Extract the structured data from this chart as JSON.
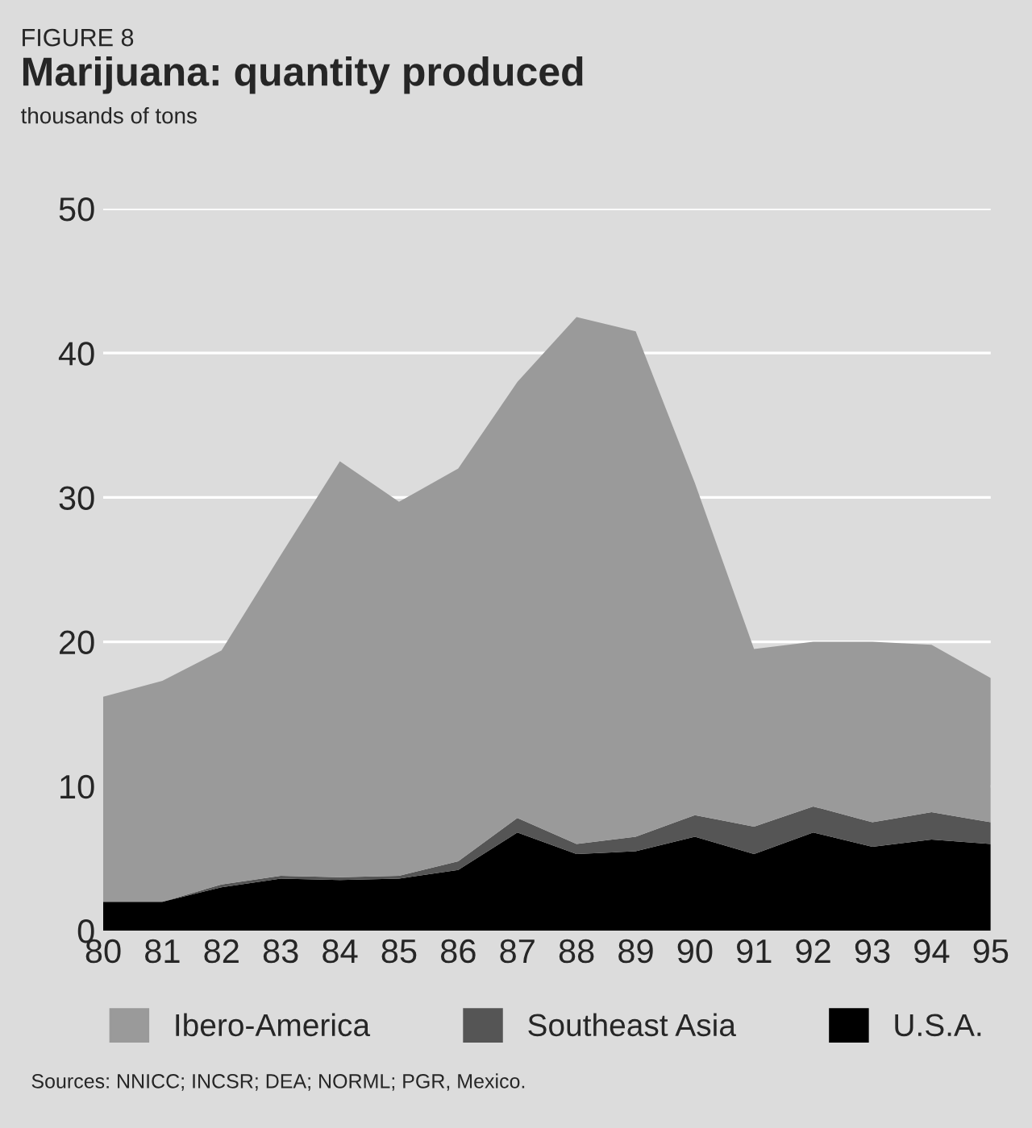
{
  "chart_data": {
    "type": "area",
    "title": "Marijuana: quantity produced",
    "ylabel": "thousands of tons",
    "annotations": [
      "FIGURE 8",
      "Sources: NNICC; INCSR; DEA; NORML; PGR, Mexico."
    ],
    "categories": [
      "80",
      "81",
      "82",
      "83",
      "84",
      "85",
      "86",
      "87",
      "88",
      "89",
      "90",
      "91",
      "92",
      "93",
      "94",
      "95"
    ],
    "stacked": true,
    "series": [
      {
        "name": "U.S.A.",
        "color": "#000000",
        "values": [
          2,
          2,
          3,
          3.6,
          3.5,
          3.6,
          4.2,
          6.8,
          5.3,
          5.5,
          6.5,
          5.3,
          6.8,
          5.8,
          6.3,
          6
        ]
      },
      {
        "name": "Southeast Asia",
        "color": "#555555",
        "values": [
          0,
          0,
          0.2,
          0.2,
          0.2,
          0.2,
          0.6,
          1,
          0.7,
          1,
          1.5,
          1.9,
          1.8,
          1.7,
          1.9,
          1.5
        ]
      },
      {
        "name": "Ibero-America",
        "color": "#9a9a9a",
        "values": [
          14.2,
          15.3,
          16.2,
          22.2,
          28.8,
          25.9,
          27.2,
          30.2,
          36.5,
          35,
          23,
          12.3,
          11.4,
          12.5,
          11.6,
          10
        ]
      }
    ],
    "ylim": [
      0,
      50
    ],
    "yticks": [
      0,
      10,
      20,
      30,
      40,
      50
    ],
    "grid": "y",
    "legend": "bottom"
  }
}
